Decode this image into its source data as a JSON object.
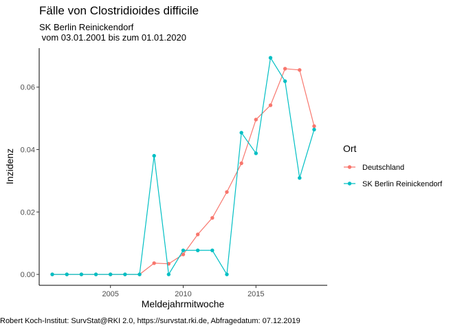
{
  "chart_data": {
    "type": "line",
    "title": "Fälle von Clostridioides difficile",
    "subtitle_line1": "SK Berlin Reinickendorf",
    "subtitle_line2": " vom 03.01.2001 bis zum 01.01.2020",
    "xlabel": "Meldejahrmitwoche",
    "ylabel": "Inzidenz",
    "caption": "Robert Koch-Institut: SurvStat@RKI 2.0, https://survstat.rki.de, Abfragedatum: 07.12.2019",
    "xlim": [
      2000.1,
      2019.9
    ],
    "ylim": [
      -0.0035,
      0.0725
    ],
    "x_ticks": [
      2005,
      2010,
      2015
    ],
    "y_ticks": [
      0.0,
      0.02,
      0.04,
      0.06
    ],
    "y_tick_labels": [
      "0.00",
      "0.02",
      "0.04",
      "0.06"
    ],
    "grid": false,
    "legend": {
      "title": "Ort",
      "position": "right"
    },
    "series": [
      {
        "name": "Deutschland",
        "color": "#F8766D",
        "x": [
          2001,
          2002,
          2003,
          2004,
          2005,
          2006,
          2007,
          2008,
          2009,
          2010,
          2011,
          2012,
          2013,
          2014,
          2015,
          2016,
          2017,
          2018,
          2019
        ],
        "y": [
          0.0,
          0.0,
          0.0,
          0.0,
          0.0,
          0.0,
          0.0,
          0.0036,
          0.0034,
          0.0064,
          0.0128,
          0.0181,
          0.0264,
          0.0356,
          0.0496,
          0.0542,
          0.0659,
          0.0655,
          0.0475
        ]
      },
      {
        "name": "SK Berlin Reinickendorf",
        "color": "#00BFC4",
        "x": [
          2001,
          2002,
          2003,
          2004,
          2005,
          2006,
          2007,
          2008,
          2009,
          2010,
          2011,
          2012,
          2013,
          2014,
          2015,
          2016,
          2017,
          2018,
          2019
        ],
        "y": [
          0.0,
          0.0,
          0.0,
          0.0,
          0.0,
          0.0,
          0.0,
          0.038,
          0.0,
          0.0077,
          0.0077,
          0.0077,
          0.0,
          0.0454,
          0.0388,
          0.0694,
          0.0619,
          0.0309,
          0.0464
        ]
      }
    ]
  }
}
